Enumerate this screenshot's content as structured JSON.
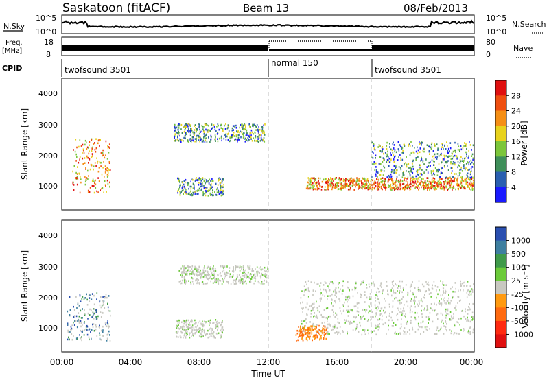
{
  "header": {
    "station": "Saskatoon (fitACF)",
    "beam": "Beam 13",
    "date": "08/Feb/2013"
  },
  "time_axis": {
    "label": "Time UT",
    "ticks": [
      "00:00",
      "04:00",
      "08:00",
      "12:00",
      "16:00",
      "20:00",
      "00:00"
    ]
  },
  "noise_panel": {
    "left_label": "N.Sky",
    "right_label": "N.Search",
    "left_ticks": [
      "10^5",
      "10^0"
    ],
    "right_ticks": [
      "10^5",
      "10^0"
    ]
  },
  "freq_panel": {
    "left_label_1": "Freq.",
    "left_label_2": "[MHz]",
    "right_label": "Nave",
    "left_ticks": [
      "18",
      "8"
    ],
    "right_ticks": [
      "80",
      "0"
    ]
  },
  "cpid_panel": {
    "label": "CPID",
    "segments": [
      {
        "name": "twofsound 3501",
        "start_hour": 0
      },
      {
        "name": "normal 150",
        "start_hour": 12
      },
      {
        "name": "twofsound 3501",
        "start_hour": 18
      }
    ]
  },
  "power_panel": {
    "ylabel": "Slant Range [km]",
    "yticks": [
      "4000",
      "3000",
      "2000",
      "1000"
    ],
    "colorbar_label": "Power [dB]",
    "colorbar_ticks": [
      "28",
      "24",
      "20",
      "16",
      "12",
      "8",
      "4"
    ],
    "colorbar_colors": [
      "#e01010",
      "#ef4f10",
      "#f58f15",
      "#e8d21c",
      "#7cc63a",
      "#3f8f5a",
      "#2a5fb0",
      "#1a1aff"
    ]
  },
  "velocity_panel": {
    "ylabel": "Slant Range [km]",
    "yticks": [
      "4000",
      "3000",
      "2000",
      "1000"
    ],
    "colorbar_label": "Velocity [m s⁻¹]",
    "colorbar_ticks": [
      "1000",
      "500",
      "100",
      "25",
      "-25",
      "-100",
      "-500",
      "-1000"
    ],
    "colorbar_colors": [
      "#2a4fb0",
      "#3e7fa0",
      "#3f9a4a",
      "#6ccb3a",
      "#c8c8c0",
      "#ff9a10",
      "#ff6a10",
      "#ff2a10",
      "#e01010"
    ]
  },
  "chart_data": {
    "type": "heatmap",
    "x_range_hours": [
      0,
      24
    ],
    "y_range_km": [
      200,
      4600
    ],
    "power_panel_features": [
      {
        "t0": 0.6,
        "t1": 2.8,
        "r0": 800,
        "r1": 2600,
        "level": "high"
      },
      {
        "t0": 6.7,
        "t1": 9.4,
        "r0": 700,
        "r1": 1300,
        "level": "mid"
      },
      {
        "t0": 6.5,
        "t1": 11.8,
        "r0": 2500,
        "r1": 3100,
        "level": "mid"
      },
      {
        "t0": 14.2,
        "t1": 24.0,
        "r0": 900,
        "r1": 1300,
        "level": "high"
      },
      {
        "t0": 18.0,
        "t1": 24.0,
        "r0": 1300,
        "r1": 2500,
        "level": "mid"
      }
    ],
    "velocity_panel_features": [
      {
        "t0": 0.3,
        "t1": 2.8,
        "r0": 600,
        "r1": 2200,
        "level": "positive"
      },
      {
        "t0": 6.6,
        "t1": 9.4,
        "r0": 700,
        "r1": 1300,
        "level": "near-zero"
      },
      {
        "t0": 6.8,
        "t1": 12.0,
        "r0": 2500,
        "r1": 3100,
        "level": "near-zero"
      },
      {
        "t0": 13.8,
        "t1": 24.0,
        "r0": 800,
        "r1": 2600,
        "level": "near-zero"
      },
      {
        "t0": 13.6,
        "t1": 15.4,
        "r0": 600,
        "r1": 1100,
        "level": "negative"
      }
    ]
  }
}
